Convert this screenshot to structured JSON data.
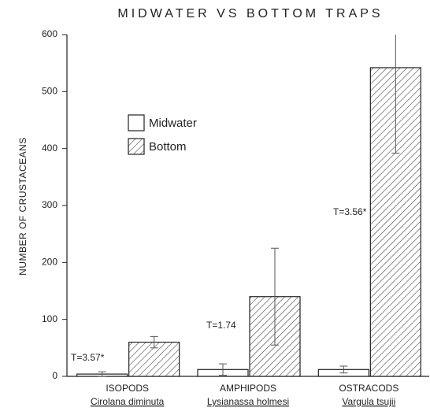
{
  "chart_data": {
    "type": "bar",
    "title": "MIDWATER VS BOTTOM TRAPS",
    "y_label": "NUMBER OF CRUSTACEANS",
    "categories": [
      "ISOPODS",
      "AMPHIPODS",
      "OSTRACODS"
    ],
    "species": [
      "Cirolana diminuta",
      "Lysianassa holmesi",
      "Vargula tsujii"
    ],
    "series": [
      {
        "name": "Midwater",
        "color": "#ffffff",
        "values": [
          4,
          12,
          12
        ],
        "errors": [
          4,
          10,
          6
        ]
      },
      {
        "name": "Bottom",
        "color": "hatch",
        "values": [
          60,
          140,
          542
        ],
        "errors": [
          10,
          85,
          150
        ]
      }
    ],
    "annotations": [
      "T=3.57*",
      "T=1.74",
      "T=3.56*"
    ],
    "ylim": [
      0,
      600
    ],
    "yticks": [
      0,
      100,
      200,
      300,
      400,
      500,
      600
    ],
    "grid": false
  }
}
